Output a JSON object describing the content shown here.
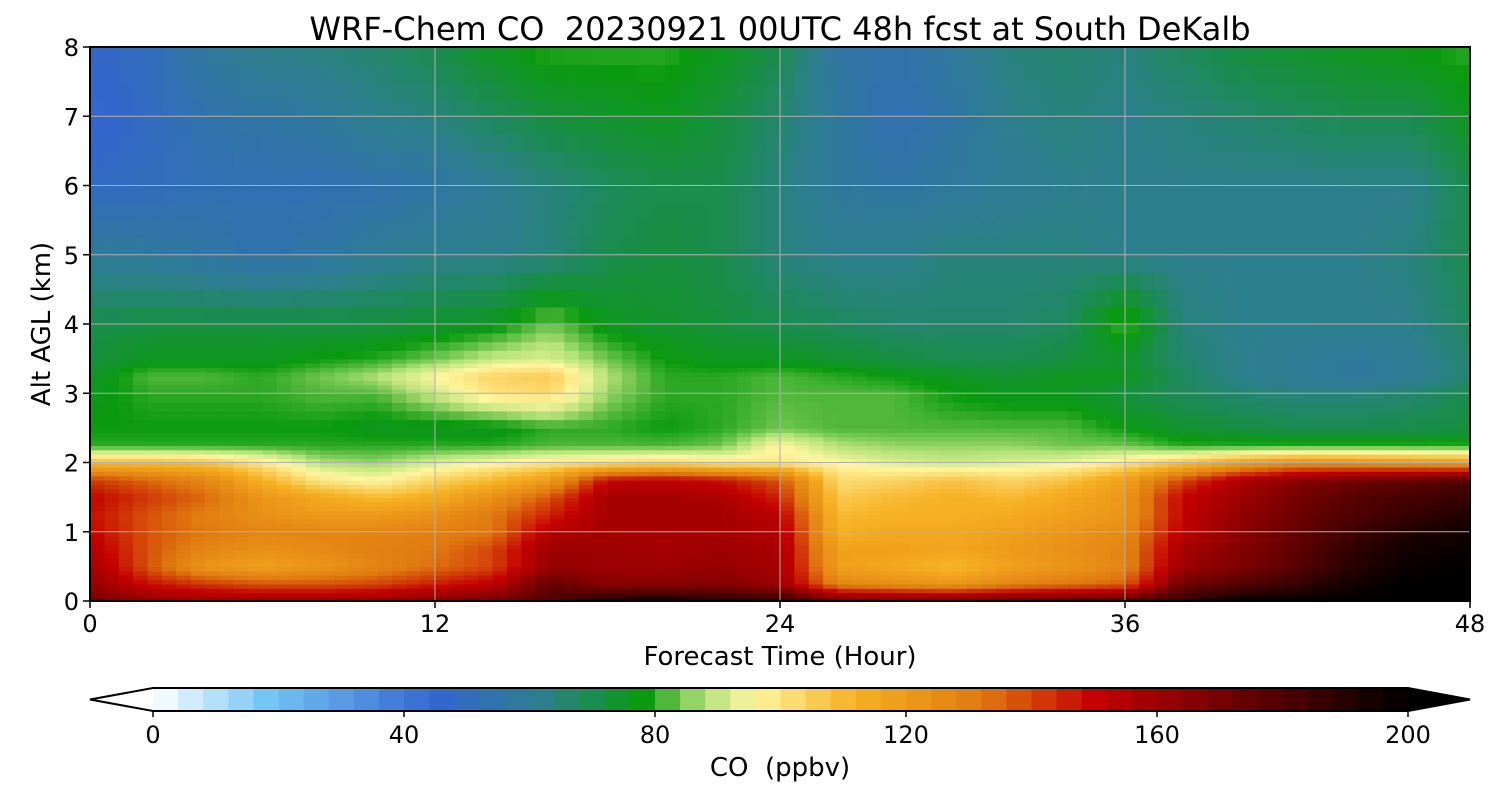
{
  "chart_data": {
    "type": "heatmap",
    "title": "WRF-Chem CO  20230921 00UTC 48h fcst at South DeKalb",
    "xlabel": "Forecast Time (Hour)",
    "ylabel": "Alt AGL (km)",
    "xlim": [
      0,
      48
    ],
    "ylim": [
      0,
      8
    ],
    "xticks": [
      0,
      12,
      24,
      36,
      48
    ],
    "xtick_labels": [
      "0",
      "12",
      "24",
      "36",
      "48"
    ],
    "yticks": [
      0,
      1,
      2,
      3,
      4,
      5,
      6,
      7,
      8
    ],
    "ytick_labels": [
      "0",
      "1",
      "2",
      "3",
      "4",
      "5",
      "6",
      "7",
      "8"
    ],
    "grid": true,
    "x": [
      0,
      2,
      4,
      6,
      8,
      10,
      12,
      14,
      16,
      18,
      20,
      22,
      24,
      26,
      28,
      30,
      32,
      34,
      36,
      38,
      40,
      42,
      44,
      46,
      48
    ],
    "y": [
      0.0,
      0.25,
      0.5,
      0.75,
      1.0,
      1.25,
      1.5,
      1.75,
      2.0,
      2.25,
      2.5,
      3.0,
      3.25,
      3.5,
      4.0,
      5.0,
      6.0,
      7.0,
      8.0
    ],
    "values_ppbv": [
      [
        172,
        165,
        162,
        162,
        162,
        165,
        168,
        172,
        180,
        195,
        198,
        192,
        190,
        175,
        172,
        172,
        178,
        180,
        182,
        188,
        200,
        200,
        200,
        200,
        200
      ],
      [
        162,
        148,
        142,
        138,
        138,
        140,
        146,
        152,
        175,
        165,
        165,
        166,
        160,
        128,
        125,
        122,
        128,
        132,
        136,
        172,
        178,
        186,
        196,
        200,
        200
      ],
      [
        158,
        138,
        122,
        118,
        122,
        128,
        134,
        140,
        162,
        160,
        160,
        162,
        158,
        118,
        115,
        110,
        118,
        122,
        128,
        160,
        168,
        178,
        190,
        198,
        200
      ],
      [
        154,
        138,
        128,
        124,
        126,
        130,
        132,
        140,
        160,
        160,
        158,
        160,
        156,
        118,
        118,
        116,
        120,
        124,
        128,
        158,
        166,
        176,
        188,
        196,
        198
      ],
      [
        150,
        138,
        132,
        128,
        128,
        128,
        130,
        132,
        155,
        158,
        158,
        158,
        155,
        112,
        115,
        115,
        118,
        122,
        126,
        152,
        164,
        174,
        184,
        192,
        196
      ],
      [
        148,
        138,
        130,
        124,
        120,
        120,
        124,
        132,
        145,
        158,
        158,
        158,
        152,
        110,
        112,
        112,
        114,
        118,
        122,
        150,
        162,
        172,
        180,
        186,
        192
      ],
      [
        150,
        142,
        135,
        122,
        115,
        110,
        114,
        124,
        138,
        158,
        158,
        156,
        145,
        106,
        110,
        112,
        110,
        115,
        122,
        150,
        160,
        170,
        178,
        182,
        186
      ],
      [
        142,
        135,
        128,
        112,
        100,
        96,
        104,
        110,
        120,
        150,
        152,
        148,
        138,
        102,
        104,
        108,
        104,
        108,
        118,
        140,
        156,
        166,
        172,
        176,
        180
      ],
      [
        110,
        110,
        108,
        100,
        88,
        86,
        92,
        96,
        100,
        102,
        104,
        100,
        100,
        96,
        92,
        90,
        92,
        94,
        100,
        108,
        118,
        125,
        124,
        122,
        120
      ],
      [
        80,
        80,
        80,
        80,
        80,
        80,
        80,
        80,
        82,
        82,
        82,
        84,
        96,
        88,
        86,
        86,
        86,
        84,
        84,
        80,
        80,
        80,
        80,
        80,
        80
      ],
      [
        78,
        78,
        78,
        78,
        78,
        76,
        76,
        76,
        80,
        80,
        78,
        80,
        84,
        82,
        82,
        82,
        82,
        82,
        78,
        74,
        72,
        70,
        70,
        70,
        72
      ],
      [
        76,
        80,
        80,
        80,
        82,
        82,
        90,
        100,
        102,
        86,
        80,
        80,
        82,
        82,
        82,
        78,
        76,
        76,
        72,
        68,
        66,
        64,
        64,
        66,
        70
      ],
      [
        74,
        82,
        82,
        80,
        84,
        88,
        96,
        104,
        106,
        88,
        80,
        80,
        82,
        80,
        78,
        76,
        74,
        76,
        76,
        68,
        62,
        60,
        58,
        60,
        66
      ],
      [
        72,
        76,
        76,
        76,
        78,
        80,
        84,
        90,
        92,
        84,
        78,
        76,
        76,
        74,
        72,
        70,
        70,
        72,
        74,
        66,
        62,
        60,
        58,
        60,
        66
      ],
      [
        70,
        72,
        72,
        72,
        72,
        72,
        74,
        76,
        84,
        76,
        74,
        72,
        70,
        68,
        66,
        66,
        66,
        68,
        82,
        64,
        62,
        62,
        62,
        62,
        68
      ],
      [
        60,
        58,
        56,
        54,
        56,
        60,
        62,
        62,
        64,
        70,
        72,
        70,
        64,
        62,
        62,
        64,
        64,
        64,
        62,
        62,
        62,
        62,
        62,
        64,
        70
      ],
      [
        48,
        50,
        52,
        52,
        52,
        54,
        56,
        60,
        64,
        68,
        70,
        70,
        64,
        58,
        56,
        58,
        60,
        62,
        62,
        62,
        62,
        62,
        62,
        62,
        70
      ],
      [
        44,
        48,
        54,
        56,
        58,
        62,
        64,
        68,
        72,
        74,
        76,
        72,
        66,
        58,
        52,
        56,
        62,
        64,
        62,
        64,
        66,
        68,
        70,
        70,
        76
      ],
      [
        46,
        50,
        58,
        62,
        64,
        66,
        70,
        76,
        80,
        80,
        80,
        76,
        70,
        56,
        54,
        58,
        64,
        66,
        64,
        68,
        72,
        74,
        76,
        78,
        80
      ]
    ],
    "colorbar": {
      "label": "CO  (ppbv)",
      "min": 0,
      "max": 200,
      "ticks": [
        0,
        40,
        80,
        120,
        160,
        200
      ],
      "tick_labels": [
        "0",
        "40",
        "80",
        "120",
        "160",
        "200"
      ],
      "extend": "both",
      "colors": [
        "#ffffff",
        "#74c7f5",
        "#3565cf",
        "#2c7f8c",
        "#0a9a0f",
        "#b6e27a",
        "#fff6a0",
        "#f6b022",
        "#e07a10",
        "#c40000",
        "#3a0000",
        "#000000"
      ],
      "stops": [
        0,
        18,
        45,
        62,
        78,
        88,
        96,
        112,
        132,
        150,
        185,
        200
      ]
    }
  }
}
